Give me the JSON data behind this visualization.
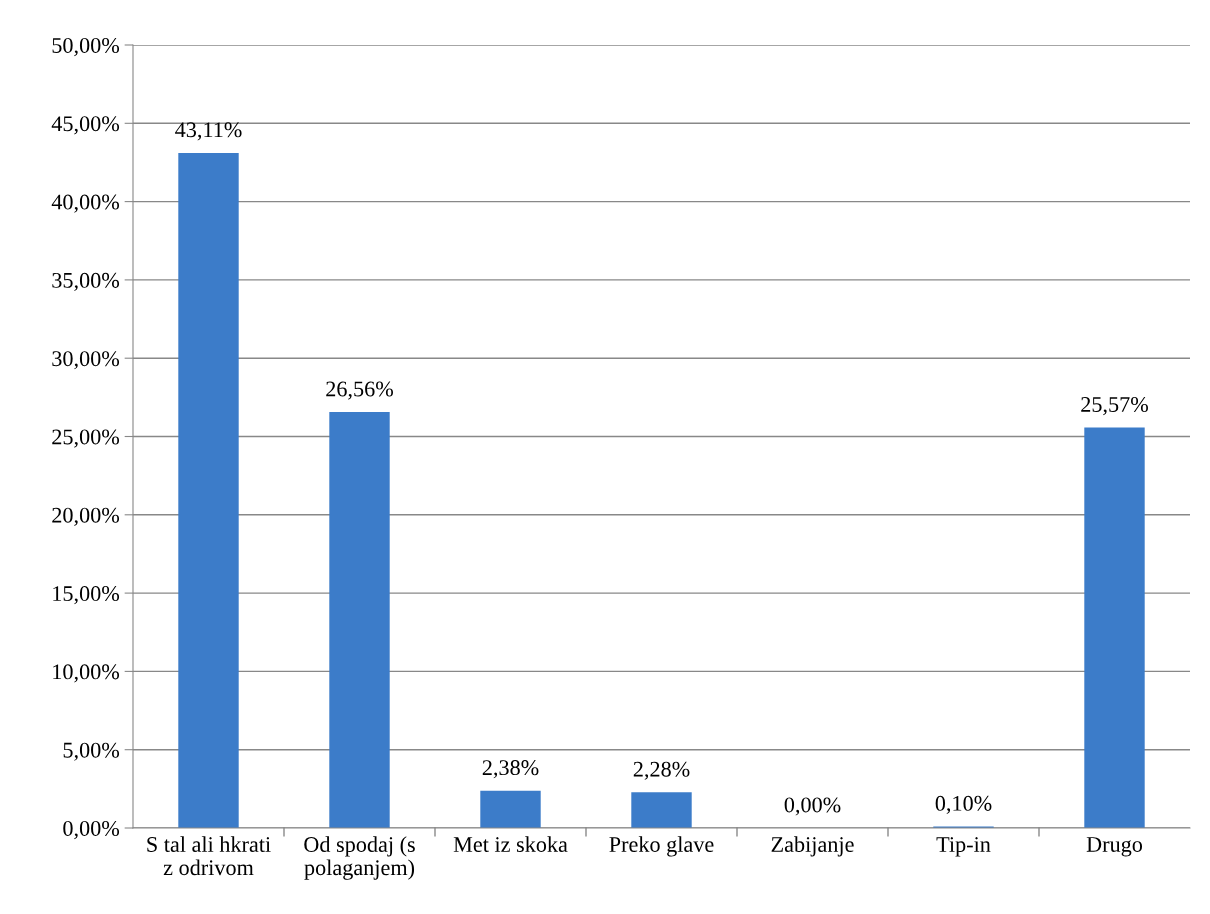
{
  "chart_data": {
    "type": "bar",
    "categories": [
      "S tal ali hkrati\nz odrivom",
      "Od spodaj (s\npolaganjem)",
      "Met iz skoka",
      "Preko glave",
      "Zabijanje",
      "Tip-in",
      "Drugo"
    ],
    "values": [
      43.11,
      26.56,
      2.38,
      2.28,
      0.0,
      0.1,
      25.57
    ],
    "value_labels": [
      "43,11%",
      "26,56%",
      "2,38%",
      "2,28%",
      "0,00%",
      "0,10%",
      "25,57%"
    ],
    "color": "#3c7cc9",
    "ylim": [
      0,
      50
    ],
    "yticks": [
      {
        "value": 0,
        "label": "0,00%"
      },
      {
        "value": 5,
        "label": "5,00%"
      },
      {
        "value": 10,
        "label": "10,00%"
      },
      {
        "value": 15,
        "label": "15,00%"
      },
      {
        "value": 20,
        "label": "20,00%"
      },
      {
        "value": 25,
        "label": "25,00%"
      },
      {
        "value": 30,
        "label": "30,00%"
      },
      {
        "value": 35,
        "label": "35,00%"
      },
      {
        "value": 40,
        "label": "40,00%"
      },
      {
        "value": 45,
        "label": "45,00%"
      },
      {
        "value": 50,
        "label": "50,00%"
      }
    ],
    "grid": "y",
    "legend": false
  }
}
